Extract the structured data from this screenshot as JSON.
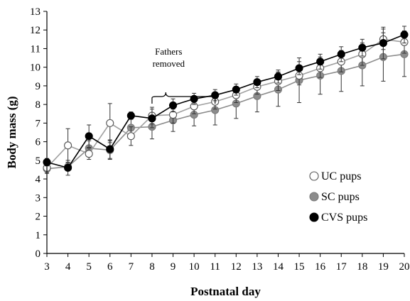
{
  "chart_data": {
    "type": "line",
    "title": "",
    "xlabel": "Postnatal day",
    "ylabel": "Body mass (g)",
    "xlim": [
      3,
      20
    ],
    "ylim": [
      0,
      13
    ],
    "x": [
      3,
      4,
      5,
      6,
      7,
      8,
      9,
      10,
      11,
      12,
      13,
      14,
      15,
      16,
      17,
      18,
      19,
      20
    ],
    "x_ticks": [
      "3",
      "4",
      "5",
      "6",
      "7",
      "8",
      "9",
      "10",
      "11",
      "12",
      "13",
      "14",
      "15",
      "16",
      "17",
      "18",
      "19",
      "20"
    ],
    "y_ticks": [
      "0",
      "1",
      "2",
      "3",
      "4",
      "5",
      "6",
      "7",
      "8",
      "9",
      "10",
      "11",
      "12",
      "13"
    ],
    "legend_position": "right",
    "error_bars": true,
    "series": [
      {
        "name": "UC pups",
        "marker": "open-circle",
        "color": "#ffffff",
        "values": [
          4.6,
          5.8,
          5.35,
          7.0,
          6.3,
          7.4,
          7.45,
          7.9,
          8.15,
          8.5,
          8.95,
          9.25,
          9.55,
          9.95,
          10.3,
          10.7,
          11.5,
          11.35
        ],
        "errors": [
          0.3,
          0.9,
          0.3,
          1.05,
          0.5,
          0.45,
          0.45,
          0.4,
          0.4,
          0.4,
          0.4,
          0.5,
          0.5,
          0.5,
          0.55,
          0.6,
          0.55,
          0.6
        ]
      },
      {
        "name": "SC pups",
        "marker": "gray-circle",
        "color": "#8c8c8c",
        "values": [
          4.55,
          4.65,
          5.65,
          5.55,
          6.75,
          6.8,
          7.15,
          7.45,
          7.7,
          8.05,
          8.45,
          8.8,
          9.3,
          9.55,
          9.8,
          10.1,
          10.55,
          10.7
        ],
        "errors": [
          0.2,
          0.2,
          0.4,
          0.5,
          0.6,
          0.65,
          0.6,
          0.6,
          0.8,
          0.8,
          0.85,
          0.9,
          1.2,
          1.0,
          1.1,
          1.1,
          1.3,
          1.2
        ]
      },
      {
        "name": "CVS pups",
        "marker": "black-circle",
        "color": "#000000",
        "values": [
          4.9,
          4.6,
          6.3,
          5.6,
          7.4,
          7.25,
          7.95,
          8.3,
          8.5,
          8.8,
          9.2,
          9.5,
          9.95,
          10.3,
          10.7,
          11.05,
          11.3,
          11.75
        ],
        "errors": [
          0.2,
          0.4,
          0.6,
          0.5,
          0.2,
          0.5,
          0.35,
          0.3,
          0.3,
          0.3,
          0.3,
          0.35,
          0.35,
          0.4,
          0.4,
          0.45,
          0.85,
          0.45
        ]
      }
    ],
    "annotations": [
      {
        "text": "Fathers removed",
        "x_range": [
          8,
          11
        ],
        "style": "brace-above"
      }
    ]
  }
}
